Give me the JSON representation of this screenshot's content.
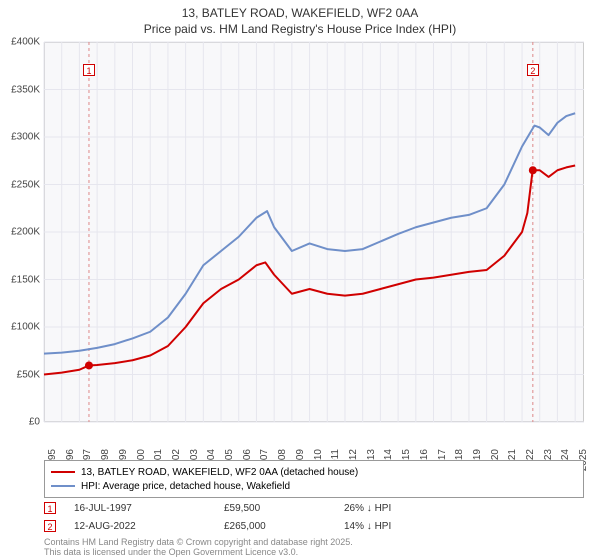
{
  "title_line1": "13, BATLEY ROAD, WAKEFIELD, WF2 0AA",
  "title_line2": "Price paid vs. HM Land Registry's House Price Index (HPI)",
  "chart": {
    "type": "line",
    "background_color": "#f8f8fa",
    "grid_color": "#e6e6ee",
    "line_width": 2,
    "xlim": [
      1995,
      2025.5
    ],
    "ylim": [
      0,
      400000
    ],
    "yticks": [
      0,
      50000,
      100000,
      150000,
      200000,
      250000,
      300000,
      350000,
      400000
    ],
    "ytick_labels": [
      "£0",
      "£50K",
      "£100K",
      "£150K",
      "£200K",
      "£250K",
      "£300K",
      "£350K",
      "£400K"
    ],
    "xticks": [
      1995,
      1996,
      1997,
      1998,
      1999,
      2000,
      2001,
      2002,
      2003,
      2004,
      2005,
      2006,
      2007,
      2008,
      2009,
      2010,
      2011,
      2012,
      2013,
      2014,
      2015,
      2016,
      2017,
      2018,
      2019,
      2020,
      2021,
      2022,
      2023,
      2024,
      2025
    ],
    "series": {
      "price_paid": {
        "color": "#d00000",
        "label": "13, BATLEY ROAD, WAKEFIELD, WF2 0AA (detached house)",
        "data": [
          [
            1995,
            50000
          ],
          [
            1996,
            52000
          ],
          [
            1997,
            55000
          ],
          [
            1997.54,
            59500
          ],
          [
            1998,
            60000
          ],
          [
            1999,
            62000
          ],
          [
            2000,
            65000
          ],
          [
            2001,
            70000
          ],
          [
            2002,
            80000
          ],
          [
            2003,
            100000
          ],
          [
            2004,
            125000
          ],
          [
            2005,
            140000
          ],
          [
            2006,
            150000
          ],
          [
            2007,
            165000
          ],
          [
            2007.5,
            168000
          ],
          [
            2008,
            155000
          ],
          [
            2009,
            135000
          ],
          [
            2010,
            140000
          ],
          [
            2011,
            135000
          ],
          [
            2012,
            133000
          ],
          [
            2013,
            135000
          ],
          [
            2014,
            140000
          ],
          [
            2015,
            145000
          ],
          [
            2016,
            150000
          ],
          [
            2017,
            152000
          ],
          [
            2018,
            155000
          ],
          [
            2019,
            158000
          ],
          [
            2020,
            160000
          ],
          [
            2021,
            175000
          ],
          [
            2022,
            200000
          ],
          [
            2022.3,
            220000
          ],
          [
            2022.6,
            265000
          ],
          [
            2023,
            265000
          ],
          [
            2023.5,
            258000
          ],
          [
            2024,
            265000
          ],
          [
            2024.5,
            268000
          ],
          [
            2025,
            270000
          ]
        ],
        "points": [
          {
            "x": 1997.54,
            "y": 59500
          },
          {
            "x": 2022.61,
            "y": 265000
          }
        ]
      },
      "hpi": {
        "color": "#6f8fc9",
        "label": "HPI: Average price, detached house, Wakefield",
        "data": [
          [
            1995,
            72000
          ],
          [
            1996,
            73000
          ],
          [
            1997,
            75000
          ],
          [
            1998,
            78000
          ],
          [
            1999,
            82000
          ],
          [
            2000,
            88000
          ],
          [
            2001,
            95000
          ],
          [
            2002,
            110000
          ],
          [
            2003,
            135000
          ],
          [
            2004,
            165000
          ],
          [
            2005,
            180000
          ],
          [
            2006,
            195000
          ],
          [
            2007,
            215000
          ],
          [
            2007.6,
            222000
          ],
          [
            2008,
            205000
          ],
          [
            2009,
            180000
          ],
          [
            2010,
            188000
          ],
          [
            2011,
            182000
          ],
          [
            2012,
            180000
          ],
          [
            2013,
            182000
          ],
          [
            2014,
            190000
          ],
          [
            2015,
            198000
          ],
          [
            2016,
            205000
          ],
          [
            2017,
            210000
          ],
          [
            2018,
            215000
          ],
          [
            2019,
            218000
          ],
          [
            2020,
            225000
          ],
          [
            2021,
            250000
          ],
          [
            2022,
            290000
          ],
          [
            2022.7,
            312000
          ],
          [
            2023,
            310000
          ],
          [
            2023.5,
            302000
          ],
          [
            2024,
            315000
          ],
          [
            2024.5,
            322000
          ],
          [
            2025,
            325000
          ]
        ]
      }
    },
    "event_lines": [
      {
        "x": 1997.54,
        "label": "1"
      },
      {
        "x": 2022.61,
        "label": "2"
      }
    ]
  },
  "legend": [
    {
      "color": "#d00000",
      "text": "13, BATLEY ROAD, WAKEFIELD, WF2 0AA (detached house)"
    },
    {
      "color": "#6f8fc9",
      "text": "HPI: Average price, detached house, Wakefield"
    }
  ],
  "transactions": [
    {
      "num": "1",
      "date": "16-JUL-1997",
      "price": "£59,500",
      "hpi": "26% ↓ HPI"
    },
    {
      "num": "2",
      "date": "12-AUG-2022",
      "price": "£265,000",
      "hpi": "14% ↓ HPI"
    }
  ],
  "footer_line1": "Contains HM Land Registry data © Crown copyright and database right 2025.",
  "footer_line2": "This data is licensed under the Open Government Licence v3.0."
}
